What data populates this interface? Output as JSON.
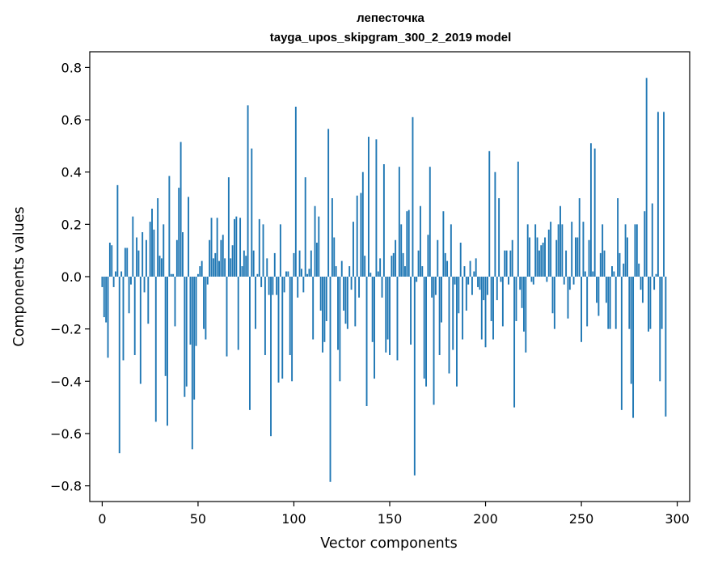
{
  "chart_data": {
    "type": "bar",
    "title": "лепесточка",
    "subtitle": "tayga_upos_skipgram_300_2_2019 model",
    "xlabel": "Vector components",
    "ylabel": "Components values",
    "xlim": [
      -6.5,
      306.5
    ],
    "ylim": [
      -0.86,
      0.86
    ],
    "xticks": [
      0,
      50,
      100,
      150,
      200,
      250,
      300
    ],
    "yticks": [
      -0.8,
      -0.6,
      -0.4,
      -0.2,
      0.0,
      0.2,
      0.4,
      0.6,
      0.8
    ],
    "ytick_labels": [
      "−0.8",
      "−0.6",
      "−0.4",
      "−0.2",
      "0.0",
      "0.2",
      "0.4",
      "0.6",
      "0.8"
    ],
    "bar_color": "#1f77b4",
    "values": [
      -0.04,
      -0.155,
      -0.175,
      -0.31,
      0.13,
      0.12,
      -0.04,
      0.02,
      0.35,
      -0.675,
      0.02,
      -0.32,
      0.11,
      0.11,
      -0.14,
      -0.03,
      0.23,
      -0.3,
      0.15,
      0.1,
      -0.41,
      0.17,
      -0.06,
      0.14,
      -0.18,
      0.21,
      0.26,
      0.18,
      -0.555,
      0.3,
      0.08,
      0.07,
      0.2,
      -0.38,
      -0.57,
      0.385,
      0.01,
      0.01,
      -0.19,
      0.14,
      0.34,
      0.515,
      0.17,
      -0.46,
      -0.42,
      0.305,
      -0.26,
      -0.66,
      -0.47,
      -0.265,
      0.01,
      0.04,
      0.06,
      -0.2,
      -0.24,
      -0.03,
      0.14,
      0.225,
      0.07,
      0.09,
      0.225,
      0.06,
      0.14,
      0.16,
      0.07,
      -0.305,
      0.38,
      0.07,
      0.12,
      0.22,
      0.23,
      -0.28,
      0.225,
      0.04,
      0.1,
      0.08,
      0.655,
      -0.51,
      0.49,
      0.1,
      -0.2,
      0.01,
      0.22,
      -0.04,
      0.2,
      -0.3,
      0.07,
      -0.07,
      -0.61,
      -0.07,
      0.09,
      -0.07,
      -0.405,
      0.2,
      -0.39,
      -0.06,
      0.02,
      0.02,
      -0.3,
      -0.4,
      0.09,
      0.65,
      -0.08,
      0.1,
      0.03,
      -0.06,
      0.38,
      0.01,
      0.03,
      0.1,
      -0.24,
      0.27,
      0.13,
      0.23,
      -0.13,
      -0.29,
      -0.25,
      -0.17,
      0.565,
      -0.785,
      0.3,
      0.15,
      0.04,
      -0.28,
      -0.4,
      0.06,
      -0.13,
      -0.18,
      -0.2,
      0.04,
      -0.05,
      0.21,
      -0.19,
      0.31,
      -0.08,
      0.32,
      0.4,
      0.08,
      -0.495,
      0.535,
      0.015,
      -0.25,
      -0.39,
      0.525,
      0.02,
      0.07,
      -0.08,
      0.43,
      -0.29,
      -0.24,
      -0.3,
      0.08,
      0.09,
      0.14,
      -0.32,
      0.42,
      0.2,
      0.09,
      0.04,
      0.25,
      0.255,
      -0.26,
      0.61,
      -0.76,
      -0.02,
      0.1,
      0.27,
      0.04,
      -0.39,
      -0.42,
      0.16,
      0.42,
      -0.08,
      -0.49,
      -0.07,
      0.14,
      -0.3,
      -0.175,
      0.25,
      0.09,
      0.06,
      -0.37,
      0.2,
      -0.28,
      -0.03,
      -0.42,
      -0.14,
      0.13,
      -0.24,
      0.04,
      -0.13,
      -0.03,
      0.06,
      -0.07,
      0.02,
      0.07,
      -0.04,
      -0.05,
      -0.24,
      -0.09,
      -0.27,
      -0.07,
      0.48,
      -0.17,
      -0.24,
      0.4,
      -0.09,
      0.3,
      -0.02,
      -0.19,
      0.1,
      0.1,
      -0.03,
      0.1,
      0.14,
      -0.5,
      -0.17,
      0.44,
      -0.05,
      -0.12,
      -0.21,
      -0.29,
      0.2,
      0.15,
      -0.02,
      -0.03,
      0.2,
      0.15,
      0.1,
      0.12,
      0.13,
      0.15,
      -0.02,
      0.18,
      0.21,
      -0.14,
      -0.2,
      0.14,
      0.2,
      0.27,
      0.2,
      -0.03,
      0.1,
      -0.16,
      -0.05,
      0.21,
      -0.03,
      0.15,
      0.15,
      0.3,
      -0.25,
      0.21,
      0.02,
      -0.19,
      0.14,
      0.51,
      0.02,
      0.49,
      -0.1,
      -0.15,
      0.09,
      0.2,
      0.1,
      -0.1,
      -0.2,
      -0.2,
      0.04,
      0.02,
      -0.2,
      0.3,
      0.09,
      -0.51,
      0.05,
      0.2,
      0.15,
      -0.2,
      -0.41,
      -0.54,
      0.2,
      0.2,
      0.05,
      -0.05,
      -0.1,
      0.25,
      0.76,
      -0.21,
      -0.2,
      0.28,
      -0.05,
      0.01,
      0.63,
      -0.4,
      -0.2,
      0.63,
      -0.535
    ]
  }
}
